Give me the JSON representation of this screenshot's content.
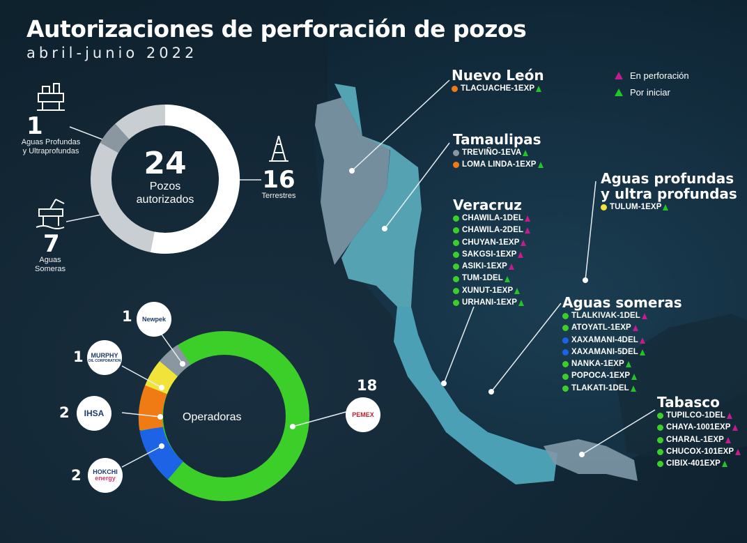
{
  "title": "Autorizaciones de perforación de pozos",
  "subtitle": "abril-junio 2022",
  "colors": {
    "en_perforacion": "#c21d8e",
    "por_iniciar": "#22c426",
    "gray": "#8a96a0",
    "orange": "#f07a14",
    "yellow": "#f1e33a",
    "blue": "#1d63e6",
    "green": "#3ccf2a"
  },
  "legend": {
    "en_perforacion": "En perforación",
    "por_iniciar": "Por iniciar"
  },
  "summary": {
    "total": "24",
    "total_label": "Pozos autorizados",
    "aguas_profundas_count": "1",
    "aguas_profundas_label": "Aguas Profundas y Ultraprofundas",
    "aguas_someras_count": "7",
    "aguas_someras_label": "Aguas Someras",
    "terrestres_count": "16",
    "terrestres_label": "Terrestres"
  },
  "operadoras": {
    "label": "Operadoras",
    "items": [
      {
        "count": "1",
        "logo": "Newpek",
        "color": "#8a96a0"
      },
      {
        "count": "1",
        "logo": "MURPHY",
        "logo_sub": "OIL CORPORATION",
        "color": "#f1e33a"
      },
      {
        "count": "2",
        "logo": "IHSA",
        "color": "#f07a14"
      },
      {
        "count": "2",
        "logo": "HOKCHI",
        "logo_sub": "energy",
        "color": "#1d63e6"
      },
      {
        "count": "18",
        "logo": "PEMEX",
        "color": "#3ccf2a"
      }
    ]
  },
  "regions": [
    {
      "name": "Nuevo León",
      "wells": [
        {
          "name": "TLACUACHE-1EXP",
          "op": "orange",
          "status": "por_iniciar"
        }
      ]
    },
    {
      "name": "Tamaulipas",
      "wells": [
        {
          "name": "TREVIÑO-1EVA",
          "op": "gray",
          "status": "por_iniciar"
        },
        {
          "name": "LOMA LINDA-1EXP",
          "op": "orange",
          "status": "por_iniciar"
        }
      ]
    },
    {
      "name": "Veracruz",
      "wells": [
        {
          "name": "CHAWILA-1DEL",
          "op": "green",
          "status": "en_perforacion"
        },
        {
          "name": "CHAWILA-2DEL",
          "op": "green",
          "status": "en_perforacion"
        },
        {
          "name": "CHUYAN-1EXP",
          "op": "green",
          "status": "en_perforacion"
        },
        {
          "name": "SAKGSI-1EXP",
          "op": "green",
          "status": "en_perforacion"
        },
        {
          "name": "ASIKI-1EXP",
          "op": "green",
          "status": "en_perforacion"
        },
        {
          "name": "TUM-1DEL",
          "op": "green",
          "status": "por_iniciar"
        },
        {
          "name": "XUNUT-1EXP",
          "op": "green",
          "status": "por_iniciar"
        },
        {
          "name": "URHANI-1EXP",
          "op": "green",
          "status": "por_iniciar"
        }
      ]
    },
    {
      "name": "Aguas profundas y ultra profundas",
      "name_line1": "Aguas profundas",
      "name_line2": "y ultra profundas",
      "wells": [
        {
          "name": "TULUM-1EXP",
          "op": "yellow",
          "status": "por_iniciar"
        }
      ]
    },
    {
      "name": "Aguas someras",
      "wells": [
        {
          "name": "TLALKIVAK-1DEL",
          "op": "green",
          "status": "en_perforacion"
        },
        {
          "name": "ATOYATL-1EXP",
          "op": "green",
          "status": "en_perforacion"
        },
        {
          "name": "XAXAMANI-4DEL",
          "op": "blue",
          "status": "en_perforacion"
        },
        {
          "name": "XAXAMANI-5DEL",
          "op": "blue",
          "status": "por_iniciar"
        },
        {
          "name": "NANKA-1EXP",
          "op": "green",
          "status": "por_iniciar"
        },
        {
          "name": "POPOCA-1EXP",
          "op": "green",
          "status": "por_iniciar"
        },
        {
          "name": "TLAKATI-1DEL",
          "op": "green",
          "status": "por_iniciar"
        }
      ]
    },
    {
      "name": "Tabasco",
      "wells": [
        {
          "name": "TUPILCO-1DEL",
          "op": "green",
          "status": "en_perforacion"
        },
        {
          "name": "CHAYA-1001EXP",
          "op": "green",
          "status": "en_perforacion"
        },
        {
          "name": "CHARAL-1EXP",
          "op": "green",
          "status": "en_perforacion"
        },
        {
          "name": "CHUCOX-101EXP",
          "op": "green",
          "status": "en_perforacion"
        },
        {
          "name": "CIBIX-401EXP",
          "op": "green",
          "status": "por_iniciar"
        }
      ]
    }
  ]
}
